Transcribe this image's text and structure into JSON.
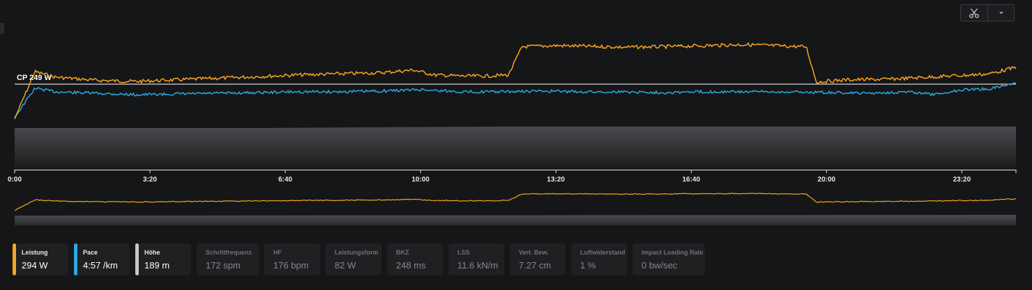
{
  "toolbar": {
    "scissors_icon": "scissors-icon",
    "dropdown_icon": "caret-down-icon"
  },
  "chart": {
    "reference_label": "CP 249 W",
    "x_ticks": [
      "0:00",
      "3:20",
      "6:40",
      "10:00",
      "13:20",
      "16:40",
      "20:00",
      "23:20"
    ],
    "colors": {
      "power": "#f5a623",
      "pace": "#29abe2",
      "elevation": "#c8c8c8",
      "reference_line": "#d8d8d8"
    }
  },
  "chart_data": {
    "type": "line",
    "x_unit": "elapsed time (m:ss)",
    "x_range": [
      "0:00",
      "24:40"
    ],
    "grid": false,
    "series": [
      {
        "name": "Leistung",
        "x": [
          "0:00",
          "0:30",
          "1:00",
          "2:00",
          "3:00",
          "4:00",
          "5:00",
          "6:00",
          "7:00",
          "8:00",
          "9:00",
          "9:50",
          "10:20",
          "11:00",
          "11:40",
          "12:10",
          "12:30",
          "13:20",
          "14:00",
          "15:00",
          "16:00",
          "17:00",
          "18:00",
          "19:00",
          "19:30",
          "19:45",
          "20:30",
          "21:30",
          "22:30",
          "23:20",
          "24:00",
          "24:40"
        ],
        "values": [
          185,
          272,
          262,
          256,
          254,
          257,
          260,
          263,
          266,
          268,
          270,
          275,
          266,
          264,
          264,
          266,
          318,
          320,
          319,
          317,
          318,
          320,
          322,
          319,
          318,
          253,
          257,
          258,
          262,
          265,
          268,
          280
        ]
      },
      {
        "name": "Pace",
        "x": [
          "0:00",
          "0:30",
          "1:00",
          "2:00",
          "3:00",
          "4:00",
          "5:00",
          "6:00",
          "7:00",
          "8:00",
          "9:00",
          "10:00",
          "11:00",
          "12:00",
          "13:00",
          "14:00",
          "15:00",
          "16:00",
          "17:00",
          "18:00",
          "19:00",
          "20:00",
          "21:00",
          "22:00",
          "22:40",
          "23:20",
          "24:00",
          "24:40"
        ],
        "values": [
          205,
          245,
          240,
          238,
          236,
          237,
          238,
          239,
          240,
          240,
          241,
          243,
          240,
          240,
          241,
          240,
          240,
          239,
          240,
          240,
          240,
          239,
          238,
          240,
          236,
          243,
          244,
          252
        ]
      },
      {
        "name": "Höhe",
        "x": [
          "0:00",
          "6:00",
          "12:00",
          "18:00",
          "24:40"
        ],
        "values": [
          189,
          189,
          190,
          190,
          190
        ]
      }
    ],
    "reference_line": {
      "label": "CP 249 W",
      "value": 249
    }
  },
  "legend": [
    {
      "label": "Leistung",
      "value": "294 W",
      "active": true,
      "color": "#f5a623"
    },
    {
      "label": "Pace",
      "value": "4:57 /km",
      "active": true,
      "color": "#29abe2"
    },
    {
      "label": "Höhe",
      "value": "189 m",
      "active": true,
      "color": "#c8c8c8"
    },
    {
      "label": "Schrittfrequenz",
      "value": "172 spm",
      "active": false
    },
    {
      "label": "HF",
      "value": "176 bpm",
      "active": false
    },
    {
      "label": "Leistungsform",
      "value": "82 W",
      "active": false
    },
    {
      "label": "BKZ",
      "value": "248 ms",
      "active": false
    },
    {
      "label": "LSS",
      "value": "11.6 kN/m",
      "active": false
    },
    {
      "label": "Vert. Bew.",
      "value": "7.27 cm",
      "active": false
    },
    {
      "label": "Luftwiderstand",
      "value": "1 %",
      "active": false
    },
    {
      "label": "Impact Loading Rate",
      "value": "0 bw/sec",
      "active": false
    }
  ]
}
